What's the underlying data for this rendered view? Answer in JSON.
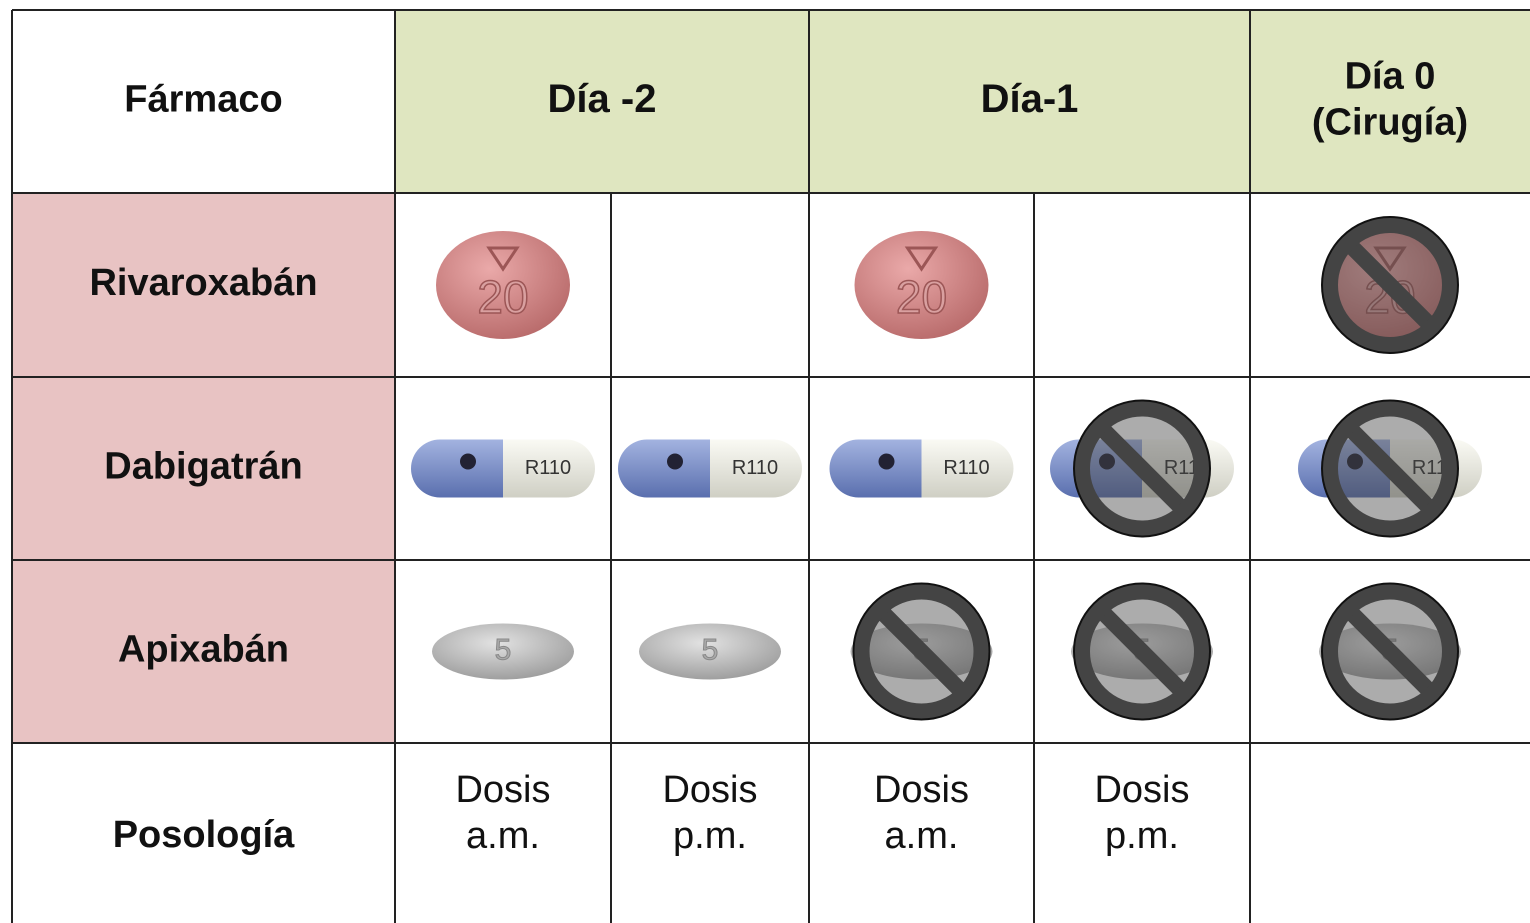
{
  "header": {
    "drug": "Fármaco",
    "days": [
      "Día -2",
      "Día-1",
      "Día 0\n(Cirugía)"
    ]
  },
  "rows": [
    {
      "name": "Rivaroxabán",
      "pill_label": "20"
    },
    {
      "name": "Dabigatrán",
      "pill_label": "R110"
    },
    {
      "name": "Apixabán",
      "pill_label": "5"
    }
  ],
  "posology": {
    "name": "Posología",
    "doses": [
      "Dosis\na.m.",
      "Dosis\np.m.",
      "Dosis\na.m.",
      "Dosis\np.m."
    ]
  }
}
